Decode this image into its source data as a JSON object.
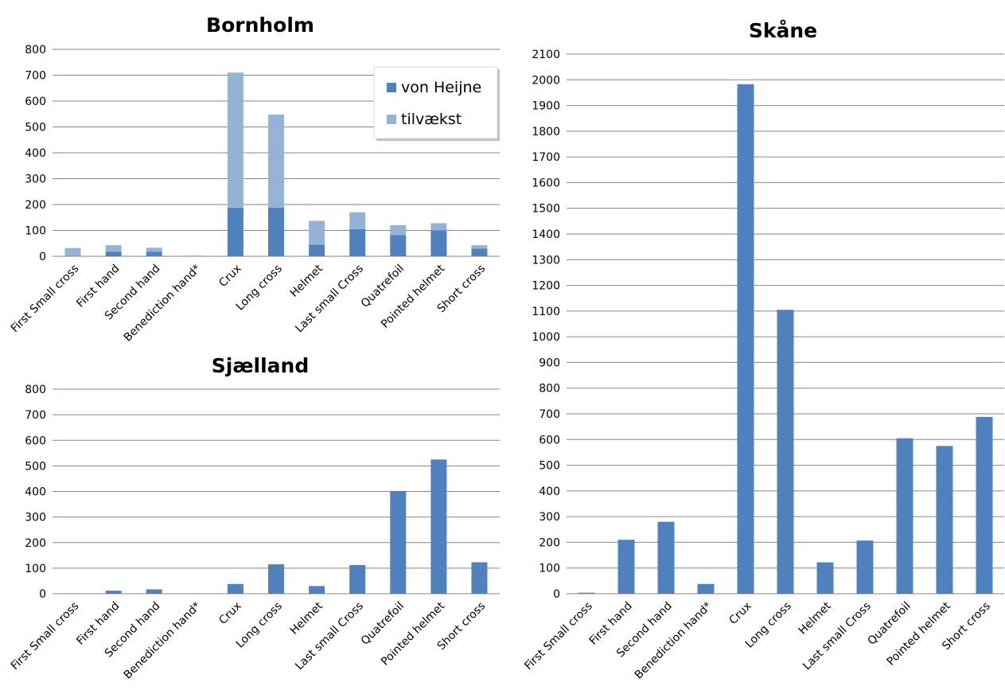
{
  "chart_data": [
    {
      "id": "bornholm",
      "type": "bar",
      "stacked": true,
      "title": "Bornholm",
      "xlabel": "",
      "ylabel": "",
      "ylim": [
        0,
        800
      ],
      "yticks": [
        0,
        100,
        200,
        300,
        400,
        500,
        600,
        700,
        800
      ],
      "grid": true,
      "legend_position": "top-right",
      "categories": [
        "First Small cross",
        "First hand",
        "Second hand",
        "Benediction hand*",
        "Crux",
        "Long cross",
        "Helmet",
        "Last small Cross",
        "Quatrefoil",
        "Pointed helmet",
        "Short cross"
      ],
      "series": [
        {
          "name": "von Heijne",
          "color": "#4F81BD",
          "values": [
            2,
            18,
            18,
            0,
            188,
            188,
            45,
            105,
            82,
            100,
            30
          ]
        },
        {
          "name": "tilvækst",
          "color": "#95B3D7",
          "values": [
            30,
            25,
            15,
            3,
            522,
            360,
            92,
            65,
            38,
            28,
            13
          ]
        }
      ]
    },
    {
      "id": "sjaelland",
      "type": "bar",
      "title": "Sjælland",
      "xlabel": "",
      "ylabel": "",
      "ylim": [
        0,
        800
      ],
      "yticks": [
        0,
        100,
        200,
        300,
        400,
        500,
        600,
        700,
        800
      ],
      "grid": true,
      "categories": [
        "First Small cross",
        "First hand",
        "Second hand",
        "Benediction hand*",
        "Crux",
        "Long cross",
        "Helmet",
        "Last small Cross",
        "Quatrefoil",
        "Pointed helmet",
        "Short cross"
      ],
      "series": [
        {
          "color": "#4F81BD",
          "values": [
            0,
            12,
            17,
            0,
            38,
            115,
            30,
            112,
            402,
            525,
            123
          ]
        }
      ]
    },
    {
      "id": "skane",
      "type": "bar",
      "title": "Skåne",
      "xlabel": "",
      "ylabel": "",
      "ylim": [
        0,
        2100
      ],
      "yticks": [
        0,
        100,
        200,
        300,
        400,
        500,
        600,
        700,
        800,
        900,
        1000,
        1100,
        1200,
        1300,
        1400,
        1500,
        1600,
        1700,
        1800,
        1900,
        2000,
        2100
      ],
      "grid": true,
      "categories": [
        "First Small cross",
        "First hand",
        "Second hand",
        "Benediction hand*",
        "Crux",
        "Long cross",
        "Helmet",
        "Last small Cross",
        "Quatrefoil",
        "Pointed helmet",
        "Short cross"
      ],
      "series": [
        {
          "color": "#4F81BD",
          "values": [
            4,
            210,
            280,
            38,
            1983,
            1105,
            122,
            207,
            605,
            575,
            688
          ]
        }
      ]
    }
  ]
}
